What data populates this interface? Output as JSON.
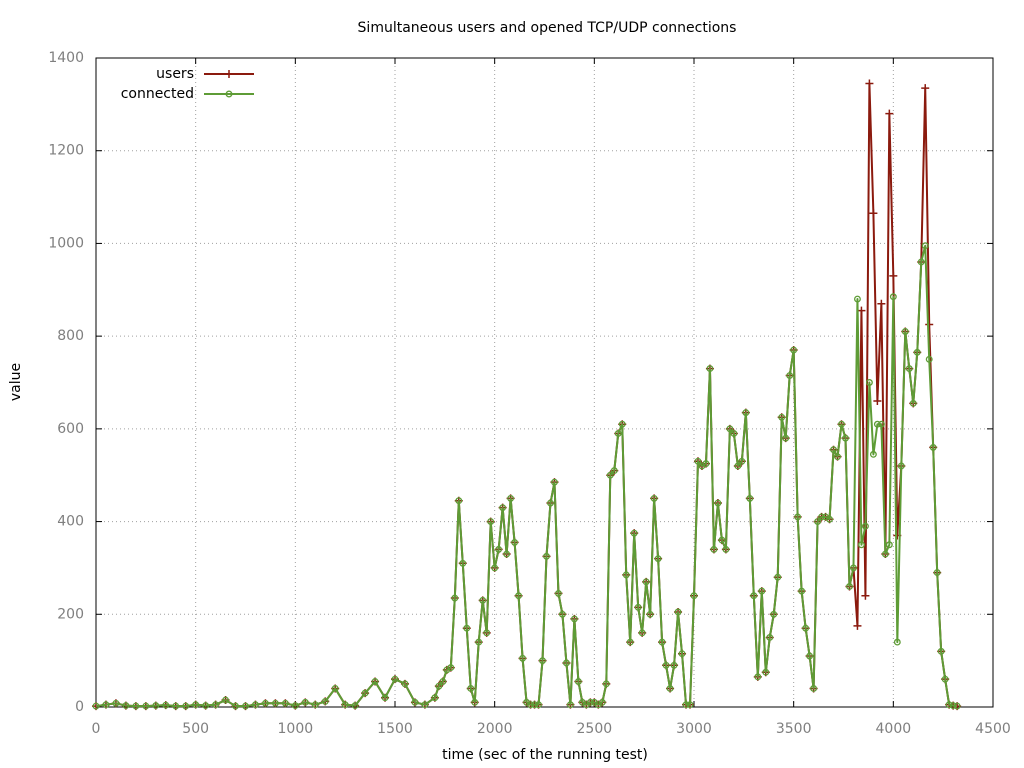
{
  "chart_data": {
    "type": "line",
    "title": "Simultaneous users and opened TCP/UDP connections",
    "x_label": "time (sec of the running test)",
    "y_label": "value",
    "xlim": [
      0,
      4500
    ],
    "xticks": [
      0,
      500,
      1000,
      1500,
      2000,
      2500,
      3000,
      3500,
      4000,
      4500
    ],
    "ylim": [
      0,
      1400
    ],
    "yticks": [
      0,
      200,
      400,
      600,
      800,
      1000,
      1200,
      1400
    ],
    "grid": true,
    "legend": "top-left",
    "x": [
      0,
      50,
      100,
      150,
      200,
      250,
      300,
      350,
      400,
      450,
      500,
      550,
      600,
      650,
      700,
      750,
      800,
      850,
      900,
      950,
      1000,
      1050,
      1100,
      1150,
      1200,
      1250,
      1300,
      1350,
      1400,
      1450,
      1500,
      1550,
      1600,
      1650,
      1700,
      1720,
      1740,
      1760,
      1780,
      1800,
      1820,
      1840,
      1860,
      1880,
      1900,
      1920,
      1940,
      1960,
      1980,
      2000,
      2020,
      2040,
      2060,
      2080,
      2100,
      2120,
      2140,
      2160,
      2180,
      2200,
      2220,
      2240,
      2260,
      2280,
      2300,
      2320,
      2340,
      2360,
      2380,
      2400,
      2420,
      2440,
      2460,
      2480,
      2500,
      2520,
      2540,
      2560,
      2580,
      2600,
      2620,
      2640,
      2660,
      2680,
      2700,
      2720,
      2740,
      2760,
      2780,
      2800,
      2820,
      2840,
      2860,
      2880,
      2900,
      2920,
      2940,
      2960,
      2980,
      3000,
      3020,
      3040,
      3060,
      3080,
      3100,
      3120,
      3140,
      3160,
      3180,
      3200,
      3220,
      3240,
      3260,
      3280,
      3300,
      3320,
      3340,
      3360,
      3380,
      3400,
      3420,
      3440,
      3460,
      3480,
      3500,
      3520,
      3540,
      3560,
      3580,
      3600,
      3620,
      3640,
      3660,
      3680,
      3700,
      3720,
      3740,
      3760,
      3780,
      3800,
      3820,
      3840,
      3860,
      3880,
      3900,
      3920,
      3940,
      3960,
      3980,
      4000,
      4020,
      4040,
      4060,
      4080,
      4100,
      4120,
      4140,
      4160,
      4180,
      4200,
      4220,
      4240,
      4260,
      4280,
      4300,
      4320
    ],
    "series": [
      {
        "name": "users",
        "color": "#8b1a0e",
        "marker": "plus",
        "values": [
          2,
          5,
          8,
          3,
          2,
          2,
          3,
          4,
          2,
          2,
          5,
          3,
          5,
          15,
          2,
          2,
          5,
          8,
          8,
          8,
          3,
          10,
          5,
          12,
          40,
          5,
          3,
          30,
          55,
          20,
          60,
          50,
          10,
          5,
          20,
          45,
          55,
          80,
          85,
          235,
          445,
          310,
          170,
          40,
          10,
          140,
          230,
          160,
          400,
          300,
          340,
          430,
          330,
          450,
          355,
          240,
          105,
          10,
          5,
          5,
          5,
          100,
          325,
          440,
          485,
          245,
          200,
          95,
          5,
          190,
          55,
          10,
          5,
          10,
          10,
          5,
          10,
          50,
          500,
          510,
          590,
          610,
          285,
          140,
          375,
          215,
          160,
          270,
          200,
          450,
          320,
          140,
          90,
          40,
          90,
          205,
          115,
          5,
          5,
          240,
          530,
          520,
          525,
          730,
          340,
          440,
          360,
          340,
          600,
          590,
          520,
          530,
          635,
          450,
          240,
          65,
          250,
          75,
          150,
          200,
          280,
          625,
          580,
          715,
          770,
          410,
          250,
          170,
          110,
          40,
          400,
          410,
          410,
          405,
          555,
          540,
          610,
          580,
          260,
          300,
          175,
          855,
          240,
          1345,
          1065,
          660,
          870,
          330,
          1280,
          930,
          370,
          520,
          810,
          730,
          655,
          765,
          960,
          1335,
          825,
          560,
          290,
          120,
          60,
          5,
          3,
          2
        ]
      },
      {
        "name": "connected",
        "color": "#5e9c36",
        "marker": "circle",
        "values": [
          2,
          5,
          8,
          3,
          2,
          2,
          3,
          4,
          2,
          2,
          5,
          3,
          5,
          15,
          2,
          2,
          5,
          8,
          8,
          8,
          3,
          10,
          5,
          12,
          40,
          5,
          3,
          30,
          55,
          20,
          60,
          50,
          10,
          5,
          20,
          45,
          55,
          80,
          85,
          235,
          445,
          310,
          170,
          40,
          10,
          140,
          230,
          160,
          400,
          300,
          340,
          430,
          330,
          450,
          355,
          240,
          105,
          10,
          5,
          5,
          5,
          100,
          325,
          440,
          485,
          245,
          200,
          95,
          5,
          190,
          55,
          10,
          5,
          10,
          10,
          5,
          10,
          50,
          500,
          510,
          590,
          610,
          285,
          140,
          375,
          215,
          160,
          270,
          200,
          450,
          320,
          140,
          90,
          40,
          90,
          205,
          115,
          5,
          5,
          240,
          530,
          520,
          525,
          730,
          340,
          440,
          360,
          340,
          600,
          590,
          520,
          530,
          635,
          450,
          240,
          65,
          250,
          75,
          150,
          200,
          280,
          625,
          580,
          715,
          770,
          410,
          250,
          170,
          110,
          40,
          400,
          410,
          410,
          405,
          555,
          540,
          610,
          580,
          260,
          300,
          880,
          350,
          390,
          700,
          545,
          610,
          610,
          330,
          350,
          885,
          140,
          520,
          810,
          730,
          655,
          765,
          960,
          995,
          750,
          560,
          290,
          120,
          60,
          5,
          3,
          2
        ]
      }
    ]
  }
}
